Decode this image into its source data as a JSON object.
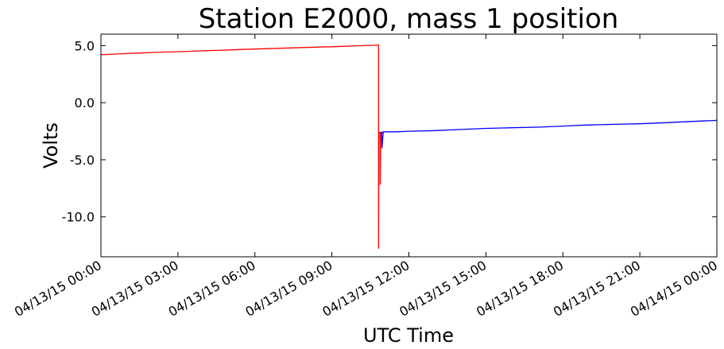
{
  "chart_data": {
    "type": "line",
    "title": "Station E2000, mass 1 position",
    "xlabel": "UTC Time",
    "ylabel": "Volts",
    "x_ticks": [
      "04/13/15 00:00",
      "04/13/15 03:00",
      "04/13/15 06:00",
      "04/13/15 09:00",
      "04/13/15 12:00",
      "04/13/15 15:00",
      "04/13/15 18:00",
      "04/13/15 21:00",
      "04/14/15 00:00"
    ],
    "y_ticks": [
      "5.0",
      "0.0",
      "-5.0",
      "-10.0"
    ],
    "xlim": [
      "04/13/15 00:00",
      "04/14/15 00:00"
    ],
    "ylim": [
      -13.5,
      6.0
    ],
    "grid": false,
    "series": [
      {
        "color": "#ff0000",
        "x": [
          "04/13/15 00:00",
          "04/13/15 00:30",
          "04/13/15 01:00",
          "04/13/15 01:30",
          "04/13/15 02:00",
          "04/13/15 02:30",
          "04/13/15 03:00",
          "04/13/15 03:30",
          "04/13/15 04:00",
          "04/13/15 04:30",
          "04/13/15 05:00",
          "04/13/15 05:30",
          "04/13/15 06:00",
          "04/13/15 06:30",
          "04/13/15 07:00",
          "04/13/15 07:30",
          "04/13/15 08:00",
          "04/13/15 08:30",
          "04/13/15 09:00",
          "04/13/15 09:30",
          "04/13/15 10:00",
          "04/13/15 10:30",
          "04/13/15 10:48",
          "04/13/15 10:49",
          "04/13/15 10:49",
          "04/13/15 10:50",
          "04/13/15 10:53",
          "04/13/15 10:53",
          "04/13/15 10:54",
          "04/13/15 10:58",
          "04/13/15 10:59",
          "04/13/15 11:00"
        ],
        "y": [
          4.2,
          4.25,
          4.3,
          4.35,
          4.4,
          4.43,
          4.47,
          4.5,
          4.55,
          4.58,
          4.62,
          4.66,
          4.7,
          4.73,
          4.77,
          4.8,
          4.84,
          4.87,
          4.9,
          4.94,
          4.98,
          5.02,
          5.05,
          5.05,
          -12.8,
          -2.6,
          -2.6,
          -7.2,
          -2.7,
          -2.65,
          -2.6,
          -2.6
        ]
      },
      {
        "color": "#0000ff",
        "x": [
          "04/13/15 10:53",
          "04/13/15 10:56",
          "04/13/15 10:57",
          "04/13/15 11:00",
          "04/13/15 11:30",
          "04/13/15 12:00",
          "04/13/15 13:00",
          "04/13/15 14:00",
          "04/13/15 15:00",
          "04/13/15 16:00",
          "04/13/15 17:00",
          "04/13/15 18:00",
          "04/13/15 19:00",
          "04/13/15 20:00",
          "04/13/15 21:00",
          "04/13/15 22:00",
          "04/13/15 23:00",
          "04/14/15 00:00"
        ],
        "y": [
          -2.6,
          -2.6,
          -4.0,
          -2.55,
          -2.55,
          -2.5,
          -2.45,
          -2.35,
          -2.25,
          -2.2,
          -2.15,
          -2.05,
          -1.95,
          -1.9,
          -1.85,
          -1.75,
          -1.65,
          -1.55
        ]
      }
    ]
  }
}
